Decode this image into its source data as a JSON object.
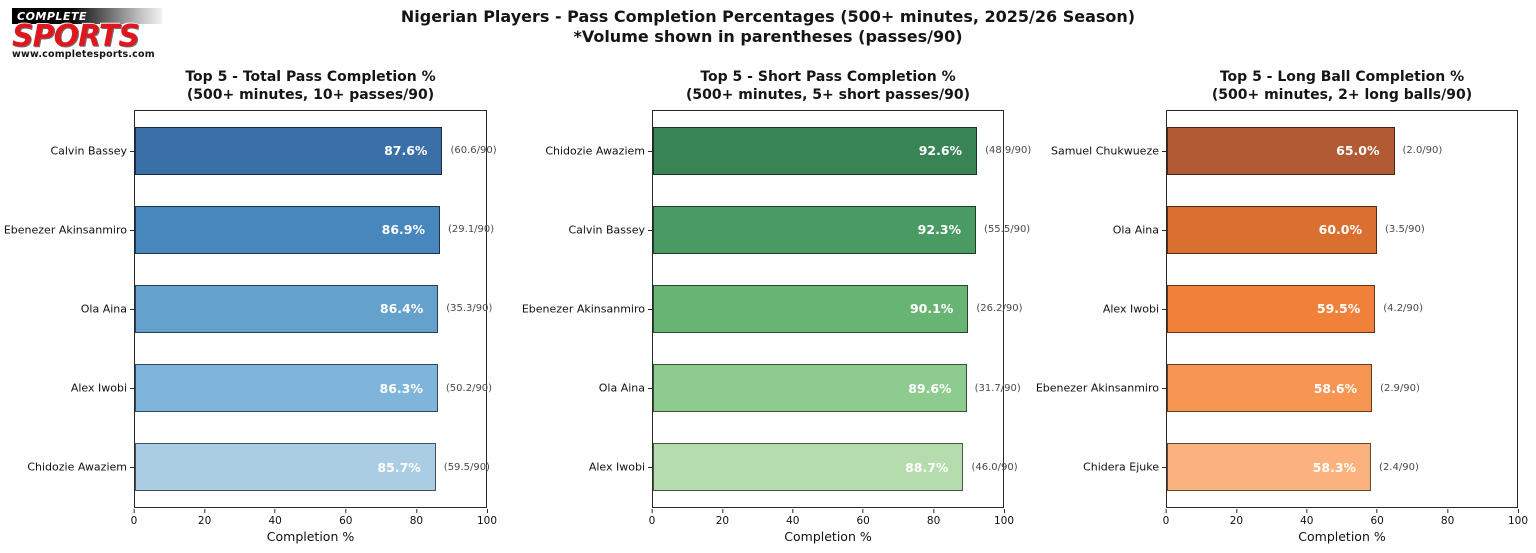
{
  "header": {
    "title_line1": "Nigerian Players - Pass Completion Percentages (500+ minutes, 2025/26 Season)",
    "title_line2": "*Volume shown in parentheses (passes/90)"
  },
  "logo": {
    "top_text": "COMPLETE",
    "brand_text": "SPORTS",
    "url_text": "www.completesports.com",
    "brand_color": "#e0161d"
  },
  "chart_data": [
    {
      "type": "bar",
      "orientation": "horizontal",
      "title": "Top 5 - Total Pass Completion %",
      "subtitle": "(500+ minutes, 10+ passes/90)",
      "xlabel": "Completion %",
      "xlim": [
        0,
        100
      ],
      "xticks": [
        0,
        20,
        40,
        60,
        80,
        100
      ],
      "bars": [
        {
          "player": "Calvin Bassey",
          "value": 87.6,
          "value_label": "87.6%",
          "volume_label": "(60.6/90)",
          "color": "#3a6fa8"
        },
        {
          "player": "Ebenezer Akinsanmiro",
          "value": 86.9,
          "value_label": "86.9%",
          "volume_label": "(29.1/90)",
          "color": "#4887bd"
        },
        {
          "player": "Ola Aina",
          "value": 86.4,
          "value_label": "86.4%",
          "volume_label": "(35.3/90)",
          "color": "#64a1cd"
        },
        {
          "player": "Alex Iwobi",
          "value": 86.3,
          "value_label": "86.3%",
          "volume_label": "(50.2/90)",
          "color": "#7fb5da"
        },
        {
          "player": "Chidozie Awaziem",
          "value": 85.7,
          "value_label": "85.7%",
          "volume_label": "(59.5/90)",
          "color": "#aacde4"
        }
      ]
    },
    {
      "type": "bar",
      "orientation": "horizontal",
      "title": "Top 5 - Short Pass Completion %",
      "subtitle": "(500+ minutes, 5+ short passes/90)",
      "xlabel": "Completion %",
      "xlim": [
        0,
        100
      ],
      "xticks": [
        0,
        20,
        40,
        60,
        80,
        100
      ],
      "bars": [
        {
          "player": "Chidozie Awaziem",
          "value": 92.6,
          "value_label": "92.6%",
          "volume_label": "(48.9/90)",
          "color": "#388455"
        },
        {
          "player": "Calvin Bassey",
          "value": 92.3,
          "value_label": "92.3%",
          "volume_label": "(55.5/90)",
          "color": "#4a9a63"
        },
        {
          "player": "Ebenezer Akinsanmiro",
          "value": 90.1,
          "value_label": "90.1%",
          "volume_label": "(26.2/90)",
          "color": "#68b573"
        },
        {
          "player": "Ola Aina",
          "value": 89.6,
          "value_label": "89.6%",
          "volume_label": "(31.7/90)",
          "color": "#8ecb8e"
        },
        {
          "player": "Alex Iwobi",
          "value": 88.7,
          "value_label": "88.7%",
          "volume_label": "(46.0/90)",
          "color": "#b5dcac"
        }
      ]
    },
    {
      "type": "bar",
      "orientation": "horizontal",
      "title": "Top 5 - Long Ball Completion %",
      "subtitle": "(500+ minutes, 2+ long balls/90)",
      "xlabel": "Completion %",
      "xlim": [
        0,
        100
      ],
      "xticks": [
        0,
        20,
        40,
        60,
        80,
        100
      ],
      "bars": [
        {
          "player": "Samuel Chukwueze",
          "value": 65.0,
          "value_label": "65.0%",
          "volume_label": "(2.0/90)",
          "color": "#b15a34"
        },
        {
          "player": "Ola Aina",
          "value": 60.0,
          "value_label": "60.0%",
          "volume_label": "(3.5/90)",
          "color": "#d9702f"
        },
        {
          "player": "Alex Iwobi",
          "value": 59.5,
          "value_label": "59.5%",
          "volume_label": "(4.2/90)",
          "color": "#ef813b"
        },
        {
          "player": "Ebenezer Akinsanmiro",
          "value": 58.6,
          "value_label": "58.6%",
          "volume_label": "(2.9/90)",
          "color": "#f79552"
        },
        {
          "player": "Chidera Ejuke",
          "value": 58.3,
          "value_label": "58.3%",
          "volume_label": "(2.4/90)",
          "color": "#fcb27e"
        }
      ]
    }
  ]
}
